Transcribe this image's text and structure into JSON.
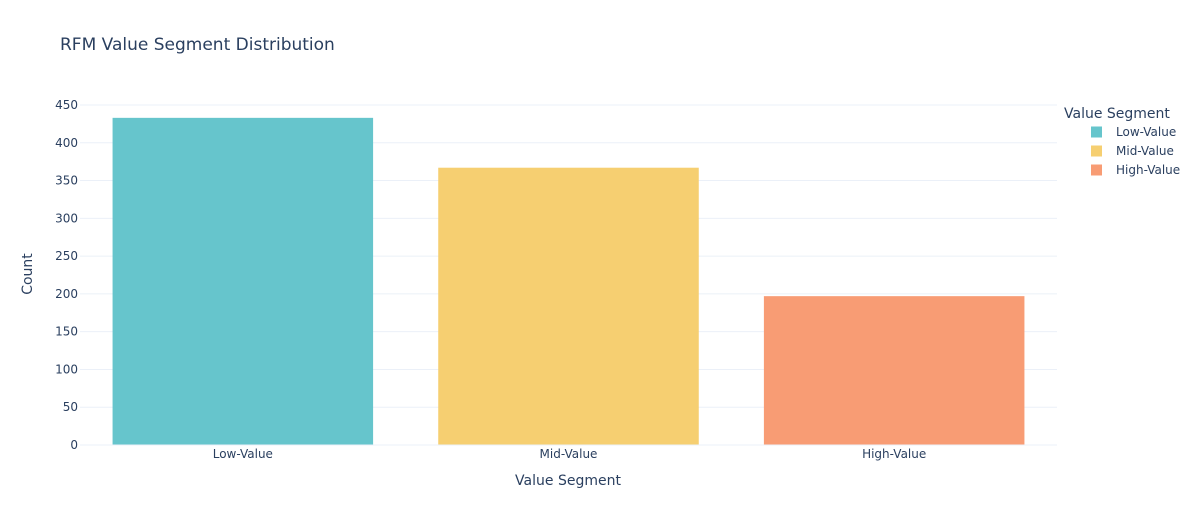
{
  "chart_data": {
    "type": "bar",
    "title": "RFM Value Segment Distribution",
    "xlabel": "Value Segment",
    "ylabel": "Count",
    "categories": [
      "Low-Value",
      "Mid-Value",
      "High-Value"
    ],
    "values": [
      433,
      367,
      197
    ],
    "colors": [
      "#66c5cc",
      "#f6cf71",
      "#f89c74"
    ],
    "ylim": [
      0,
      450
    ],
    "yticks": [
      0,
      50,
      100,
      150,
      200,
      250,
      300,
      350,
      400,
      450
    ],
    "grid": true,
    "legend": {
      "title": "Value Segment",
      "position": "top-right",
      "entries": [
        "Low-Value",
        "Mid-Value",
        "High-Value"
      ]
    }
  }
}
